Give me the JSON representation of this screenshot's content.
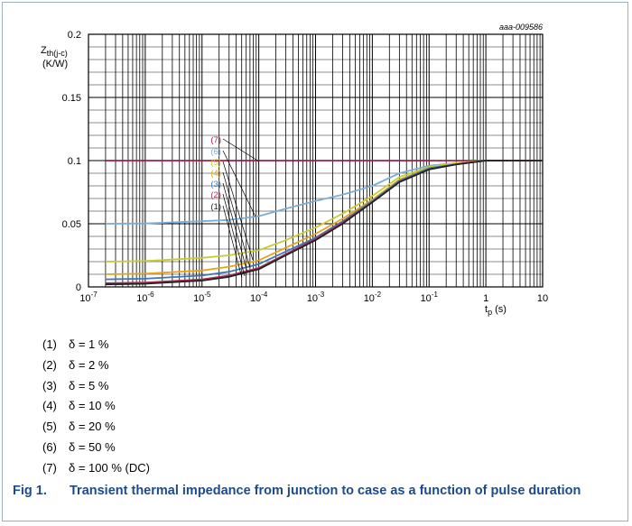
{
  "chart_data": {
    "type": "line",
    "x_scale": "log",
    "xlim": [
      1e-07,
      10
    ],
    "ylim": [
      0,
      0.2
    ],
    "y_ticks": [
      0,
      0.05,
      0.1,
      0.15,
      0.2
    ],
    "y_tick_labels": [
      "0",
      "0.05",
      "0.1",
      "0.15",
      "0.2"
    ],
    "x_ticks": [
      {
        "value": 1e-07,
        "base": "10",
        "exp": "-7"
      },
      {
        "value": 1e-06,
        "base": "10",
        "exp": "-6"
      },
      {
        "value": 1e-05,
        "base": "10",
        "exp": "-5"
      },
      {
        "value": 0.0001,
        "base": "10",
        "exp": "-4"
      },
      {
        "value": 0.001,
        "base": "10",
        "exp": "-3"
      },
      {
        "value": 0.01,
        "base": "10",
        "exp": "-2"
      },
      {
        "value": 0.1,
        "base": "10",
        "exp": "-1"
      },
      {
        "value": 1,
        "base": "1",
        "exp": ""
      },
      {
        "value": 10,
        "base": "10",
        "exp": ""
      }
    ],
    "ylabel": {
      "main": "Z",
      "sub": "th(j-c)",
      "unit": "(K/W)"
    },
    "xlabel": {
      "main": "t",
      "sub": "p",
      "unit": "(s)"
    },
    "figure_id": "aaa-009586",
    "grid": true,
    "series": [
      {
        "name": "(1)",
        "color": "#222222",
        "points": [
          [
            2e-07,
            0.002
          ],
          [
            1e-06,
            0.0025
          ],
          [
            1e-05,
            0.005
          ],
          [
            3e-05,
            0.008
          ],
          [
            0.0001,
            0.014
          ],
          [
            0.0003,
            0.025
          ],
          [
            0.001,
            0.037
          ],
          [
            0.003,
            0.05
          ],
          [
            0.01,
            0.067
          ],
          [
            0.03,
            0.083
          ],
          [
            0.1,
            0.093
          ],
          [
            0.3,
            0.097
          ],
          [
            1,
            0.1
          ],
          [
            10,
            0.1
          ]
        ]
      },
      {
        "name": "(2)",
        "color": "#b0305a",
        "points": [
          [
            2e-07,
            0.003
          ],
          [
            1e-06,
            0.0035
          ],
          [
            1e-05,
            0.006
          ],
          [
            3e-05,
            0.009
          ],
          [
            0.0001,
            0.015
          ],
          [
            0.0003,
            0.026
          ],
          [
            0.001,
            0.038
          ],
          [
            0.003,
            0.051
          ],
          [
            0.01,
            0.067
          ],
          [
            0.03,
            0.083
          ],
          [
            0.1,
            0.093
          ],
          [
            0.3,
            0.097
          ],
          [
            1,
            0.1
          ],
          [
            10,
            0.1
          ]
        ]
      },
      {
        "name": "(3)",
        "color": "#3d78b5",
        "points": [
          [
            2e-07,
            0.006
          ],
          [
            1e-06,
            0.0065
          ],
          [
            1e-05,
            0.009
          ],
          [
            3e-05,
            0.012
          ],
          [
            0.0001,
            0.018
          ],
          [
            0.0003,
            0.028
          ],
          [
            0.001,
            0.039
          ],
          [
            0.003,
            0.052
          ],
          [
            0.01,
            0.068
          ],
          [
            0.03,
            0.084
          ],
          [
            0.1,
            0.094
          ],
          [
            0.3,
            0.097
          ],
          [
            1,
            0.1
          ],
          [
            10,
            0.1
          ]
        ]
      },
      {
        "name": "(4)",
        "color": "#e8a317",
        "points": [
          [
            2e-07,
            0.01
          ],
          [
            1e-06,
            0.0105
          ],
          [
            1e-05,
            0.013
          ],
          [
            3e-05,
            0.016
          ],
          [
            0.0001,
            0.021
          ],
          [
            0.0003,
            0.031
          ],
          [
            0.001,
            0.042
          ],
          [
            0.003,
            0.054
          ],
          [
            0.01,
            0.069
          ],
          [
            0.03,
            0.085
          ],
          [
            0.1,
            0.094
          ],
          [
            0.3,
            0.097
          ],
          [
            1,
            0.1
          ],
          [
            10,
            0.1
          ]
        ]
      },
      {
        "name": "(5)",
        "color": "#c8cc30",
        "points": [
          [
            2e-07,
            0.02
          ],
          [
            1e-06,
            0.0205
          ],
          [
            1e-05,
            0.023
          ],
          [
            3e-05,
            0.025
          ],
          [
            0.0001,
            0.029
          ],
          [
            0.0003,
            0.037
          ],
          [
            0.001,
            0.047
          ],
          [
            0.003,
            0.058
          ],
          [
            0.01,
            0.072
          ],
          [
            0.03,
            0.087
          ],
          [
            0.1,
            0.095
          ],
          [
            0.3,
            0.098
          ],
          [
            1,
            0.1
          ],
          [
            10,
            0.1
          ]
        ]
      },
      {
        "name": "(6)",
        "color": "#7aaed6",
        "points": [
          [
            2e-07,
            0.05
          ],
          [
            1e-06,
            0.0502
          ],
          [
            1e-05,
            0.052
          ],
          [
            3e-05,
            0.053
          ],
          [
            0.0001,
            0.056
          ],
          [
            0.0003,
            0.062
          ],
          [
            0.001,
            0.068
          ],
          [
            0.003,
            0.073
          ],
          [
            0.01,
            0.08
          ],
          [
            0.03,
            0.09
          ],
          [
            0.1,
            0.096
          ],
          [
            0.3,
            0.098
          ],
          [
            1,
            0.1
          ],
          [
            10,
            0.1
          ]
        ]
      },
      {
        "name": "(7)",
        "color": "#a01e48",
        "points": [
          [
            2e-07,
            0.1
          ],
          [
            10,
            0.1
          ]
        ]
      }
    ],
    "curve_labels": [
      "(7)",
      "(6)",
      "(5)",
      "(4)",
      "(3)",
      "(2)",
      "(1)"
    ]
  },
  "legend": [
    {
      "num": "(1)",
      "text": "δ = 1 %"
    },
    {
      "num": "(2)",
      "text": "δ = 2 %"
    },
    {
      "num": "(3)",
      "text": "δ = 5 %"
    },
    {
      "num": "(4)",
      "text": "δ = 10 %"
    },
    {
      "num": "(5)",
      "text": "δ = 20 %"
    },
    {
      "num": "(6)",
      "text": "δ = 50 %"
    },
    {
      "num": "(7)",
      "text": "δ = 100 % (DC)"
    }
  ],
  "caption": {
    "number": "Fig 1.",
    "text": "Transient thermal impedance from junction to case as a function of pulse duration"
  }
}
